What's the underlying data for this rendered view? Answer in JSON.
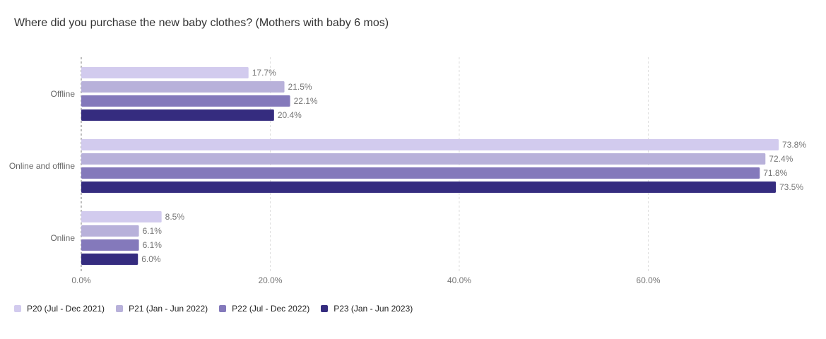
{
  "chart_data": {
    "type": "bar",
    "orientation": "horizontal",
    "title": "Where did you purchase the new baby clothes? (Mothers with baby 6 mos)",
    "categories": [
      "Offline",
      "Online and offline",
      "Online"
    ],
    "series": [
      {
        "name": "P20 (Jul - Dec 2021)",
        "color": "#d2cbee",
        "values": [
          17.7,
          73.8,
          8.5
        ]
      },
      {
        "name": "P21 (Jan - Jun 2022)",
        "color": "#b8b1da",
        "values": [
          21.5,
          72.4,
          6.1
        ]
      },
      {
        "name": "P22 (Jul - Dec 2022)",
        "color": "#8479bb",
        "values": [
          22.1,
          71.8,
          6.1
        ]
      },
      {
        "name": "P23 (Jan - Jun 2023)",
        "color": "#352c7f",
        "values": [
          20.4,
          73.5,
          6.0
        ]
      }
    ],
    "data_labels": [
      [
        "17.7%",
        "21.5%",
        "22.1%",
        "20.4%"
      ],
      [
        "73.8%",
        "72.4%",
        "71.8%",
        "73.5%"
      ],
      [
        "8.5%",
        "6.1%",
        "6.1%",
        "6.0%"
      ]
    ],
    "x_ticks": [
      0,
      20,
      40,
      60
    ],
    "x_tick_labels": [
      "0.0%",
      "20.0%",
      "40.0%",
      "60.0%"
    ],
    "xlim": [
      0,
      73.8
    ],
    "grid": true,
    "legend_position": "bottom-left"
  }
}
